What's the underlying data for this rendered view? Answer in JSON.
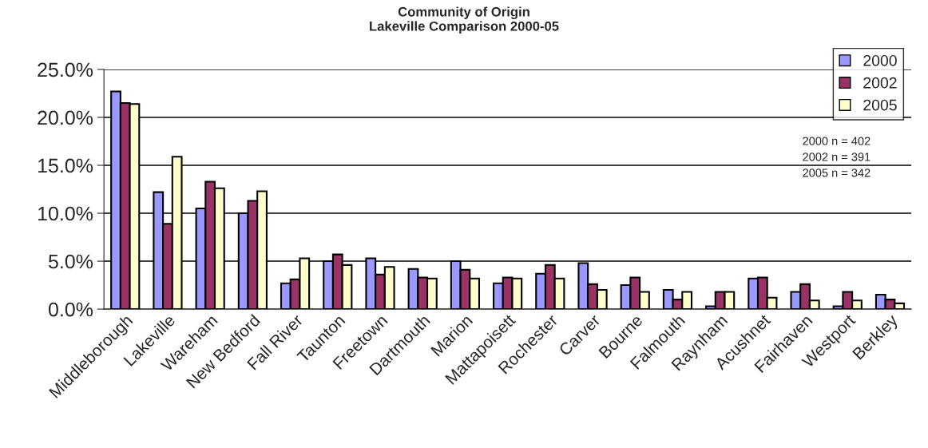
{
  "chart_data": {
    "type": "bar",
    "title": "Community of Origin\nLakeville Comparison 2000-05",
    "categories": [
      "Middleborough",
      "Lakeville",
      "Wareham",
      "New Bedford",
      "Fall River",
      "Taunton",
      "Freetown",
      "Dartmouth",
      "Marion",
      "Mattapoisett",
      "Rochester",
      "Carver",
      "Bourne",
      "Falmouth",
      "Raynham",
      "Acushnet",
      "Fairhaven",
      "Westport",
      "Berkley"
    ],
    "series": [
      {
        "name": "2000",
        "color": "#9999ff",
        "values": [
          22.7,
          12.2,
          10.5,
          10.0,
          2.7,
          5.0,
          5.3,
          4.2,
          5.0,
          2.7,
          3.7,
          4.8,
          2.5,
          2.0,
          0.3,
          3.2,
          1.8,
          0.3,
          1.5
        ]
      },
      {
        "name": "2002",
        "color": "#993366",
        "values": [
          21.5,
          8.9,
          13.3,
          11.3,
          3.1,
          5.7,
          3.6,
          3.3,
          4.1,
          3.3,
          4.6,
          2.6,
          3.3,
          1.0,
          1.8,
          3.3,
          2.6,
          1.8,
          1.0
        ]
      },
      {
        "name": "2005",
        "color": "#ffffcc",
        "values": [
          21.4,
          15.9,
          12.6,
          12.3,
          5.3,
          4.6,
          4.4,
          3.2,
          3.2,
          3.2,
          3.2,
          2.0,
          1.8,
          1.8,
          1.8,
          1.2,
          0.9,
          0.9,
          0.6
        ]
      }
    ],
    "ylim": [
      0,
      25
    ],
    "yticks": [
      {
        "value": 0,
        "label": "0.0%"
      },
      {
        "value": 5,
        "label": "5.0%"
      },
      {
        "value": 10,
        "label": "10.0%"
      },
      {
        "value": 15,
        "label": "15.0%"
      },
      {
        "value": 20,
        "label": "20.0%"
      },
      {
        "value": 25,
        "label": "25.0%"
      }
    ],
    "grid": "y",
    "legend": "top right",
    "annotations": [
      "2000 n = 402\n2002 n = 391\n2005 n = 342"
    ]
  }
}
